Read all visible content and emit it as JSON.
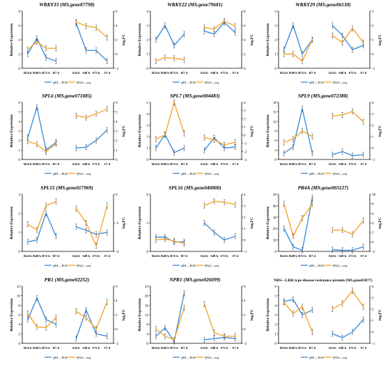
{
  "figure": {
    "x_categories": [
      "R24 h",
      "R48 h",
      "R72 h",
      "R7 d",
      "S24 h",
      "S48 h",
      "S72 h",
      "S7 d"
    ],
    "legend": {
      "qrt": "qRT—PCR",
      "rna": "RNA—seq"
    },
    "left_axis_label": "Relative Expression",
    "right_axis_label": "log₂FC",
    "colors": {
      "qrt": "#3d8fdb",
      "rna": "#f5a52a",
      "axis": "#000000"
    }
  },
  "chart_data": [
    {
      "type": "line",
      "title": "WRKY33 (MS.gene87798)",
      "ylim": [
        0,
        8
      ],
      "y2lim": [
        -2,
        6
      ],
      "yticks": [
        0,
        2,
        4,
        6,
        8
      ],
      "y2ticks": [
        -2,
        0,
        2,
        4,
        6
      ],
      "series": [
        {
          "name": "qRT—PCR",
          "values": [
            2.0,
            4.2,
            1.5,
            1.0,
            6.3,
            2.5,
            2.5,
            1.0
          ]
        },
        {
          "name": "RNA—seq",
          "values": [
            0.6,
            1.7,
            0.8,
            0.8,
            4.5,
            3.9,
            3.7,
            2.3
          ]
        }
      ]
    },
    {
      "type": "line",
      "title": "WRKY22 (MS.gene79681)",
      "ylim": [
        0,
        4
      ],
      "y2lim": [
        0,
        8
      ],
      "yticks": [
        0,
        1,
        2,
        3,
        4
      ],
      "y2ticks": [
        0,
        2,
        4,
        6,
        8
      ],
      "series": [
        {
          "name": "qRT—PCR",
          "values": [
            2.0,
            3.0,
            1.6,
            2.4,
            2.6,
            2.4,
            3.2,
            2.5
          ]
        },
        {
          "name": "RNA—seq",
          "values": [
            1.0,
            1.5,
            1.4,
            1.2,
            5.7,
            5.5,
            6.6,
            5.9
          ]
        }
      ]
    },
    {
      "type": "line",
      "title": "WRKY29 (MS.gene06130)",
      "ylim": [
        0,
        4
      ],
      "y2lim": [
        -1,
        3
      ],
      "yticks": [
        0,
        1,
        2,
        3,
        4
      ],
      "y2ticks": [
        -1,
        0,
        1,
        2,
        3
      ],
      "series": [
        {
          "name": "qRT—PCR",
          "values": [
            1.3,
            3.0,
            1.0,
            2.0,
            3.0,
            2.3,
            1.3,
            1.6
          ]
        },
        {
          "name": "RNA—seq",
          "values": [
            0.0,
            0.0,
            -0.5,
            1.0,
            1.3,
            0.8,
            1.8,
            0.8
          ]
        }
      ]
    },
    {
      "type": "line",
      "title": "SPL6 (MS.gene071085)",
      "ylim": [
        0,
        6
      ],
      "y2lim": [
        0,
        6
      ],
      "yticks": [
        0,
        1,
        2,
        3,
        4,
        5,
        6
      ],
      "y2ticks": [
        0,
        1,
        2,
        3,
        4,
        5,
        6
      ],
      "series": [
        {
          "name": "qRT—PCR",
          "values": [
            2.3,
            5.5,
            1.0,
            1.8,
            1.2,
            1.3,
            2.0,
            3.1
          ]
        },
        {
          "name": "RNA—seq",
          "values": [
            1.9,
            1.6,
            0.8,
            1.7,
            4.6,
            4.4,
            4.8,
            5.3
          ]
        }
      ]
    },
    {
      "type": "line",
      "title": "SPL7 (MS.gene004483)",
      "ylim": [
        0,
        5
      ],
      "y2lim": [
        -3,
        4
      ],
      "yticks": [
        0,
        1,
        2,
        3,
        4,
        5
      ],
      "y2ticks": [
        -3,
        -2,
        -1,
        0,
        1,
        2,
        3,
        4
      ],
      "series": [
        {
          "name": "qRT—PCR",
          "values": [
            1.0,
            2.2,
            0.6,
            1.0,
            0.8,
            1.9,
            1.0,
            1.1
          ]
        },
        {
          "name": "RNA—seq",
          "values": [
            -0.5,
            0.0,
            4.0,
            0.2,
            -0.3,
            -0.6,
            -1.2,
            -0.9
          ]
        }
      ]
    },
    {
      "type": "line",
      "title": "SPL9 (MS.gene072388)",
      "ylim": [
        0,
        18
      ],
      "y2lim": [
        -1,
        4
      ],
      "yticks": [
        0,
        3,
        6,
        9,
        12,
        15,
        18
      ],
      "y2ticks": [
        -1,
        0,
        1,
        2,
        3,
        4
      ],
      "series": [
        {
          "name": "qRT—PCR",
          "values": [
            2.0,
            4.0,
            16.0,
            2.0,
            1.5,
            2.5,
            1.2,
            1.5
          ]
        },
        {
          "name": "RNA—seq",
          "values": [
            0.5,
            0.8,
            1.5,
            1.0,
            2.8,
            2.9,
            3.2,
            2.3
          ]
        }
      ]
    },
    {
      "type": "line",
      "title": "SPL15 (MS.gene017969)",
      "ylim": [
        0,
        3
      ],
      "y2lim": [
        -4,
        0
      ],
      "yticks": [
        0,
        1,
        2,
        3
      ],
      "y2ticks": [
        -4,
        -2,
        0
      ],
      "series": [
        {
          "name": "qRT—PCR",
          "values": [
            0.5,
            0.6,
            2.0,
            0.8,
            1.3,
            1.1,
            0.9,
            1.0
          ]
        },
        {
          "name": "RNA—seq",
          "values": [
            -2.1,
            -2.5,
            -0.8,
            -0.5,
            -1.0,
            -2.0,
            -3.6,
            -0.8
          ]
        }
      ]
    },
    {
      "type": "line",
      "title": "SPL16 (MS.gene040800)",
      "ylim": [
        0,
        6
      ],
      "y2lim": [
        -1,
        4
      ],
      "yticks": [
        0,
        3,
        6
      ],
      "y2ticks": [
        -1,
        0,
        1,
        2,
        3,
        4
      ],
      "series": [
        {
          "name": "qRT—PCR",
          "values": [
            1.5,
            1.5,
            1.0,
            1.0,
            3.0,
            2.0,
            1.2,
            1.6
          ]
        },
        {
          "name": "RNA—seq",
          "values": [
            0.0,
            0.1,
            -0.1,
            -0.3,
            3.0,
            3.4,
            3.3,
            3.1
          ]
        }
      ]
    },
    {
      "type": "line",
      "title": "PR4A (MS.gene003127)",
      "ylim": [
        0,
        50
      ],
      "y2lim": [
        -2,
        10
      ],
      "yticks": [
        0,
        10,
        20,
        30,
        40,
        50
      ],
      "y2ticks": [
        -2,
        0,
        2,
        4,
        6,
        8,
        10
      ],
      "series": [
        {
          "name": "qRT—PCR",
          "values": [
            20.0,
            4.0,
            1.0,
            47.0,
            1.5,
            1.0,
            1.0,
            4.0
          ]
        },
        {
          "name": "RNA—seq",
          "values": [
            8.0,
            1.2,
            5.0,
            8.0,
            2.5,
            2.5,
            1.6,
            4.5
          ]
        }
      ]
    },
    {
      "type": "line",
      "title": "PR1 (MS.gene02252)",
      "ylim": [
        0,
        12
      ],
      "y2lim": [
        -2,
        6
      ],
      "yticks": [
        0,
        2,
        4,
        6,
        8,
        10,
        12
      ],
      "y2ticks": [
        -2,
        0,
        2,
        4,
        6
      ],
      "series": [
        {
          "name": "qRT—PCR",
          "values": [
            5.0,
            9.5,
            5.0,
            4.0,
            1.0,
            7.0,
            2.0,
            1.5
          ]
        },
        {
          "name": "RNA—seq",
          "values": [
            2.2,
            0.3,
            0.2,
            1.6,
            2.5,
            1.6,
            0.0,
            3.8
          ]
        }
      ]
    },
    {
      "type": "line",
      "title": "NPR1 (MS.gene026099)",
      "ylim": [
        0,
        24
      ],
      "y2lim": [
        -2,
        6
      ],
      "yticks": [
        0,
        4,
        8,
        12,
        16,
        20,
        24
      ],
      "y2ticks": [
        -2,
        0,
        2,
        4,
        6
      ],
      "series": [
        {
          "name": "qRT—PCR",
          "values": [
            3.0,
            6.5,
            0.8,
            21.0,
            1.5,
            2.0,
            2.5,
            2.0
          ]
        },
        {
          "name": "RNA—seq",
          "values": [
            0.0,
            -1.0,
            -1.5,
            3.0,
            3.5,
            -0.5,
            -1.0,
            -1.0
          ]
        }
      ]
    },
    {
      "type": "line",
      "title": "NBS—LRR type disease resistance protein (MS.gene03877)",
      "ylim": [
        0,
        6
      ],
      "y2lim": [
        -1,
        4
      ],
      "yticks": [
        0,
        1,
        2,
        3,
        4,
        5,
        6
      ],
      "y2ticks": [
        -1,
        0,
        1,
        2,
        3,
        4
      ],
      "series": [
        {
          "name": "qRT—PCR",
          "values": [
            4.4,
            4.6,
            3.0,
            3.5,
            1.0,
            0.6,
            1.2,
            2.5
          ]
        },
        {
          "name": "RNA—seq",
          "values": [
            2.6,
            1.6,
            2.2,
            0.0,
            2.0,
            2.5,
            3.6,
            2.2
          ]
        }
      ]
    }
  ]
}
